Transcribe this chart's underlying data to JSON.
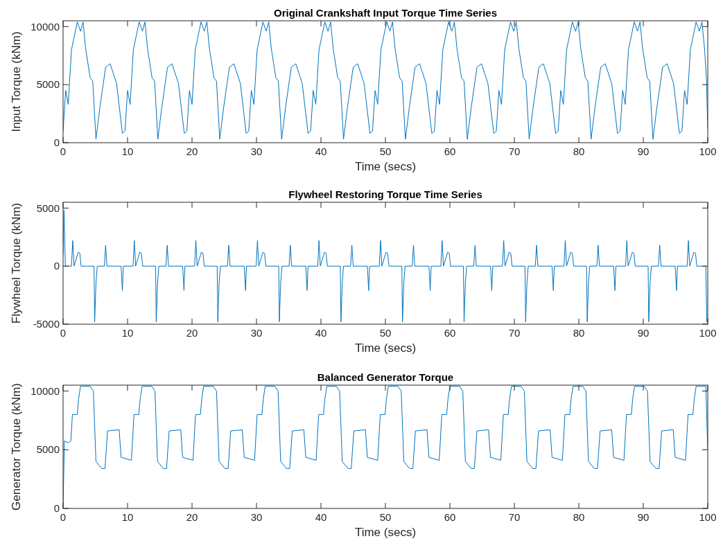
{
  "chart_data": [
    {
      "type": "line",
      "title": "Original Crankshaft Input Torque Time Series",
      "xlabel": "Time (secs)",
      "ylabel": "Input Torque (kNm)",
      "xlim": [
        0,
        100
      ],
      "xticks": [
        0,
        10,
        20,
        30,
        40,
        50,
        60,
        70,
        80,
        90,
        100
      ],
      "ylim": [
        0,
        10500
      ],
      "yticks": [
        0,
        5000,
        10000
      ],
      "x": [
        0,
        0.4,
        0.8,
        1.3,
        2.2,
        2.7,
        3.1,
        3.5,
        4.2,
        4.6,
        5.1,
        5.7,
        6.6,
        7.3,
        8.3,
        9.2,
        9.6,
        10,
        10.4,
        10.9,
        11.8,
        12.3,
        12.7,
        13.1,
        13.8,
        14.2,
        14.7,
        15.3,
        16.2,
        16.9,
        17.9,
        18.8,
        19.2,
        19.6,
        20,
        20.5,
        21.4,
        21.9,
        22.3,
        22.7,
        23.4,
        23.8,
        24.3,
        24.9,
        25.8,
        26.5,
        27.5,
        28.4,
        28.8,
        29.2,
        29.6,
        30.1,
        31,
        31.5,
        31.9,
        32.3,
        33,
        33.4,
        33.9,
        34.5,
        35.4,
        36.1,
        37.1,
        38,
        38.4,
        38.8,
        39.2,
        39.7,
        40.6,
        41.1,
        41.5,
        41.9,
        42.6,
        43,
        43.5,
        44.1,
        45,
        45.7,
        46.7,
        47.6,
        48,
        48.4,
        48.8,
        49.3,
        50.2,
        50.7,
        51.1,
        51.5,
        52.2,
        52.6,
        53.1,
        53.7,
        54.6,
        55.3,
        56.3,
        57.2,
        57.6,
        58,
        58.4,
        58.9,
        59.8,
        60.3,
        60.7,
        61.1,
        61.8,
        62.2,
        62.7,
        63.3,
        64.2,
        64.9,
        65.9,
        66.8,
        67.2,
        67.6,
        68,
        68.5,
        69.4,
        69.9,
        70.3,
        70.7,
        71.4,
        71.8,
        72.3,
        72.9,
        73.8,
        74.5,
        75.5,
        76.4,
        76.8,
        77.2,
        77.6,
        78.1,
        79,
        79.5,
        79.9,
        80.3,
        81,
        81.4,
        81.9,
        82.5,
        83.4,
        84.1,
        85.1,
        86,
        86.4,
        86.8,
        87.2,
        87.7,
        88.6,
        89.1,
        89.5,
        89.9,
        90.6,
        91,
        91.5,
        92.1,
        93,
        93.7,
        94.7,
        95.6,
        96,
        96.4,
        96.8,
        97.3,
        98.2,
        98.7,
        99.1,
        99.5,
        99.8,
        100
      ],
      "series": [
        {
          "color": "#0072bd",
          "values": [
            1000,
            4500,
            3300,
            8000,
            10400,
            9600,
            10400,
            8100,
            5600,
            5300,
            300,
            3000,
            6500,
            6800,
            5100,
            800,
            1000,
            4500,
            3300,
            8000,
            10400,
            9600,
            10400,
            8100,
            5600,
            5300,
            300,
            3000,
            6500,
            6800,
            5100,
            800,
            1000,
            4500,
            3300,
            8000,
            10400,
            9600,
            10400,
            8100,
            5600,
            5300,
            300,
            3000,
            6500,
            6800,
            5100,
            800,
            1000,
            4500,
            3300,
            8000,
            10400,
            9600,
            10400,
            8100,
            5600,
            5300,
            300,
            3000,
            6500,
            6800,
            5100,
            800,
            1000,
            4500,
            3300,
            8000,
            10400,
            9600,
            10400,
            8100,
            5600,
            5300,
            300,
            3000,
            6500,
            6800,
            5100,
            800,
            1000,
            4500,
            3300,
            8000,
            10400,
            9600,
            10400,
            8100,
            5600,
            5300,
            300,
            3000,
            6500,
            6800,
            5100,
            800,
            1000,
            4500,
            3300,
            8000,
            10400,
            9600,
            10400,
            8100,
            5600,
            5300,
            300,
            3000,
            6500,
            6800,
            5100,
            800,
            1000,
            4500,
            3300,
            8000,
            10400,
            9600,
            10400,
            8100,
            5600,
            5300,
            300,
            3000,
            6500,
            6800,
            5100,
            800,
            1000,
            4500,
            3300,
            8000,
            10400,
            9600,
            10400,
            8100,
            5600,
            5300,
            300,
            3000,
            6500,
            6800,
            5100,
            800,
            1000,
            4500,
            3300,
            8000,
            10400,
            9600,
            10400,
            8100,
            5600,
            5300,
            300,
            3000,
            6500,
            6800,
            5100,
            800,
            1000,
            4500,
            3300,
            8000,
            10400,
            9600,
            10400,
            8100,
            5500,
            1200
          ]
        }
      ]
    },
    {
      "type": "line",
      "title": "Flywheel Restoring Torque Time Series",
      "xlabel": "Time (secs)",
      "ylabel": "Flywheel Torque (kNm)",
      "xlim": [
        0,
        100
      ],
      "xticks": [
        0,
        10,
        20,
        30,
        40,
        50,
        60,
        70,
        80,
        90,
        100
      ],
      "ylim": [
        -5000,
        5500
      ],
      "yticks": [
        -5000,
        0,
        5000
      ],
      "x": [
        0,
        0.15,
        0.35,
        1.3,
        1.5,
        1.7,
        2.35,
        2.6,
        2.8,
        4.8,
        4.9,
        5.1,
        5.3,
        6.4,
        6.6,
        6.8,
        9,
        9.2,
        9.35,
        10.85,
        11.05,
        11.25,
        11.9,
        12.15,
        12.35,
        14.35,
        14.45,
        14.65,
        14.85,
        15.95,
        16.15,
        16.35,
        18.55,
        18.75,
        18.9,
        20.4,
        20.6,
        20.8,
        21.45,
        21.7,
        21.9,
        23.9,
        24,
        24.2,
        24.4,
        25.5,
        25.7,
        25.9,
        28.1,
        28.3,
        28.45,
        29.95,
        30.15,
        30.35,
        31,
        31.25,
        31.45,
        33.45,
        33.55,
        33.75,
        33.95,
        35.05,
        35.25,
        35.45,
        37.65,
        37.85,
        38,
        39.5,
        39.7,
        39.9,
        40.55,
        40.8,
        41,
        43,
        43.1,
        43.3,
        43.5,
        44.6,
        44.8,
        45,
        47.2,
        47.4,
        47.55,
        49.05,
        49.25,
        49.45,
        50.1,
        50.35,
        50.55,
        52.55,
        52.65,
        52.85,
        53.05,
        54.15,
        54.35,
        54.55,
        56.75,
        56.95,
        57.1,
        58.6,
        58.8,
        59,
        59.65,
        59.9,
        60.1,
        62.1,
        62.2,
        62.4,
        62.6,
        63.7,
        63.9,
        64.1,
        66.3,
        66.5,
        66.65,
        68.15,
        68.35,
        68.55,
        69.2,
        69.45,
        69.65,
        71.65,
        71.75,
        71.95,
        72.15,
        73.25,
        73.45,
        73.65,
        75.85,
        76.05,
        76.2,
        77.7,
        77.9,
        78.1,
        78.75,
        79,
        79.2,
        81.2,
        81.3,
        81.5,
        81.7,
        82.8,
        83,
        83.2,
        85.4,
        85.6,
        85.75,
        87.25,
        87.45,
        87.65,
        88.3,
        88.55,
        88.75,
        90.75,
        90.85,
        91.05,
        91.25,
        92.35,
        92.55,
        92.75,
        94.95,
        95.15,
        95.3,
        96.8,
        97,
        97.2,
        97.85,
        98.1,
        98.3,
        99.7,
        99.85
      ],
      "series": [
        {
          "color": "#0072bd",
          "values": [
            1000,
            4800,
            0,
            0,
            2200,
            0,
            1200,
            1100,
            0,
            0,
            -4800,
            -1500,
            0,
            0,
            1800,
            0,
            0,
            -2100,
            0,
            0,
            2200,
            0,
            1200,
            1100,
            0,
            0,
            -4800,
            -1500,
            0,
            0,
            1800,
            0,
            0,
            -2100,
            0,
            0,
            2200,
            0,
            1200,
            1100,
            0,
            0,
            -4800,
            -1500,
            0,
            0,
            1800,
            0,
            0,
            -2100,
            0,
            0,
            2200,
            0,
            1200,
            1100,
            0,
            0,
            -4800,
            -1500,
            0,
            0,
            1800,
            0,
            0,
            -2100,
            0,
            0,
            2200,
            0,
            1200,
            1100,
            0,
            0,
            -4800,
            -1500,
            0,
            0,
            1800,
            0,
            0,
            -2100,
            0,
            0,
            2200,
            0,
            1200,
            1100,
            0,
            0,
            -4800,
            -1500,
            0,
            0,
            1800,
            0,
            0,
            -2100,
            0,
            0,
            2200,
            0,
            1200,
            1100,
            0,
            0,
            -4800,
            -1500,
            0,
            0,
            1800,
            0,
            0,
            -2100,
            0,
            0,
            2200,
            0,
            1200,
            1100,
            0,
            0,
            -4800,
            -1500,
            0,
            0,
            1800,
            0,
            0,
            -2100,
            0,
            0,
            2200,
            0,
            1200,
            1100,
            0,
            0,
            -4800,
            -1500,
            0,
            0,
            1800,
            0,
            0,
            -2100,
            0,
            0,
            2200,
            0,
            1200,
            1100,
            0,
            0,
            -4800,
            -1500,
            0,
            0,
            1800,
            0,
            0,
            -2100,
            0,
            0,
            2200,
            0,
            1200,
            1100,
            0,
            0,
            -4800
          ]
        }
      ]
    },
    {
      "type": "line",
      "title": "Balanced Generator Torque",
      "xlabel": "Time (secs)",
      "ylabel": "Generator Torque (kNm)",
      "xlim": [
        0,
        100
      ],
      "xticks": [
        0,
        10,
        20,
        30,
        40,
        50,
        60,
        70,
        80,
        90,
        100
      ],
      "ylim": [
        0,
        10500
      ],
      "yticks": [
        0,
        5000,
        10000
      ],
      "x": [
        0,
        0.2,
        0.8,
        1.2,
        1.45,
        2.2,
        2.4,
        2.7,
        4.2,
        4.7,
        5.1,
        6,
        6.5,
        6.9,
        8.7,
        9,
        10.6,
        11,
        11.75,
        11.95,
        12.25,
        13.75,
        14.25,
        14.65,
        15.55,
        16.05,
        16.45,
        18.25,
        18.55,
        20.15,
        20.55,
        21.3,
        21.5,
        21.8,
        23.3,
        23.8,
        24.2,
        25.1,
        25.6,
        26,
        27.8,
        28.1,
        29.7,
        30.1,
        30.85,
        31.05,
        31.35,
        32.85,
        33.35,
        33.75,
        34.65,
        35.15,
        35.55,
        37.35,
        37.65,
        39.25,
        39.65,
        40.4,
        40.6,
        40.9,
        42.4,
        42.9,
        43.3,
        44.2,
        44.7,
        45.1,
        46.9,
        47.2,
        48.8,
        49.2,
        49.95,
        50.15,
        50.45,
        51.95,
        52.45,
        52.85,
        53.75,
        54.25,
        54.65,
        56.45,
        56.75,
        58.35,
        58.75,
        59.5,
        59.7,
        60,
        61.5,
        62,
        62.4,
        63.3,
        63.8,
        64.2,
        66,
        66.3,
        67.9,
        68.3,
        69.05,
        69.25,
        69.55,
        71.05,
        71.55,
        71.95,
        72.85,
        73.35,
        73.75,
        75.55,
        75.85,
        77.45,
        77.85,
        78.6,
        78.8,
        79.1,
        80.6,
        81.1,
        81.5,
        82.4,
        82.9,
        83.3,
        85.1,
        85.4,
        87,
        87.4,
        88.15,
        88.35,
        88.65,
        90.15,
        90.65,
        91.05,
        91.95,
        92.45,
        92.85,
        94.65,
        94.95,
        96.55,
        96.95,
        97.7,
        97.9,
        98.2,
        99.7,
        100
      ],
      "series": [
        {
          "color": "#0072bd",
          "values": [
            0,
            5750,
            5600,
            5750,
            8000,
            8000,
            9300,
            10400,
            10400,
            10000,
            4000,
            3400,
            3400,
            6600,
            6700,
            4350,
            4100,
            8000,
            8000,
            9300,
            10400,
            10400,
            10000,
            4000,
            3400,
            3400,
            6600,
            6700,
            4350,
            4100,
            8000,
            8000,
            9300,
            10400,
            10400,
            10000,
            4000,
            3400,
            3400,
            6600,
            6700,
            4350,
            4100,
            8000,
            8000,
            9300,
            10400,
            10400,
            10000,
            4000,
            3400,
            3400,
            6600,
            6700,
            4350,
            4100,
            8000,
            8000,
            9300,
            10400,
            10400,
            10000,
            4000,
            3400,
            3400,
            6600,
            6700,
            4350,
            4100,
            8000,
            8000,
            9300,
            10400,
            10400,
            10000,
            4000,
            3400,
            3400,
            6600,
            6700,
            4350,
            4100,
            8000,
            8000,
            9300,
            10400,
            10400,
            10000,
            4000,
            3400,
            3400,
            6600,
            6700,
            4350,
            4100,
            8000,
            8000,
            9300,
            10400,
            10400,
            10000,
            4000,
            3400,
            3400,
            6600,
            6700,
            4350,
            4100,
            8000,
            8000,
            9300,
            10400,
            10400,
            10000,
            4000,
            3400,
            3400,
            6600,
            6700,
            4350,
            4100,
            8000,
            8000,
            9300,
            10400,
            10400,
            10000,
            4000,
            3400,
            3400,
            6600,
            6700,
            4350,
            4100,
            8000,
            8000,
            9300,
            10400,
            10400,
            5000
          ]
        }
      ]
    }
  ]
}
